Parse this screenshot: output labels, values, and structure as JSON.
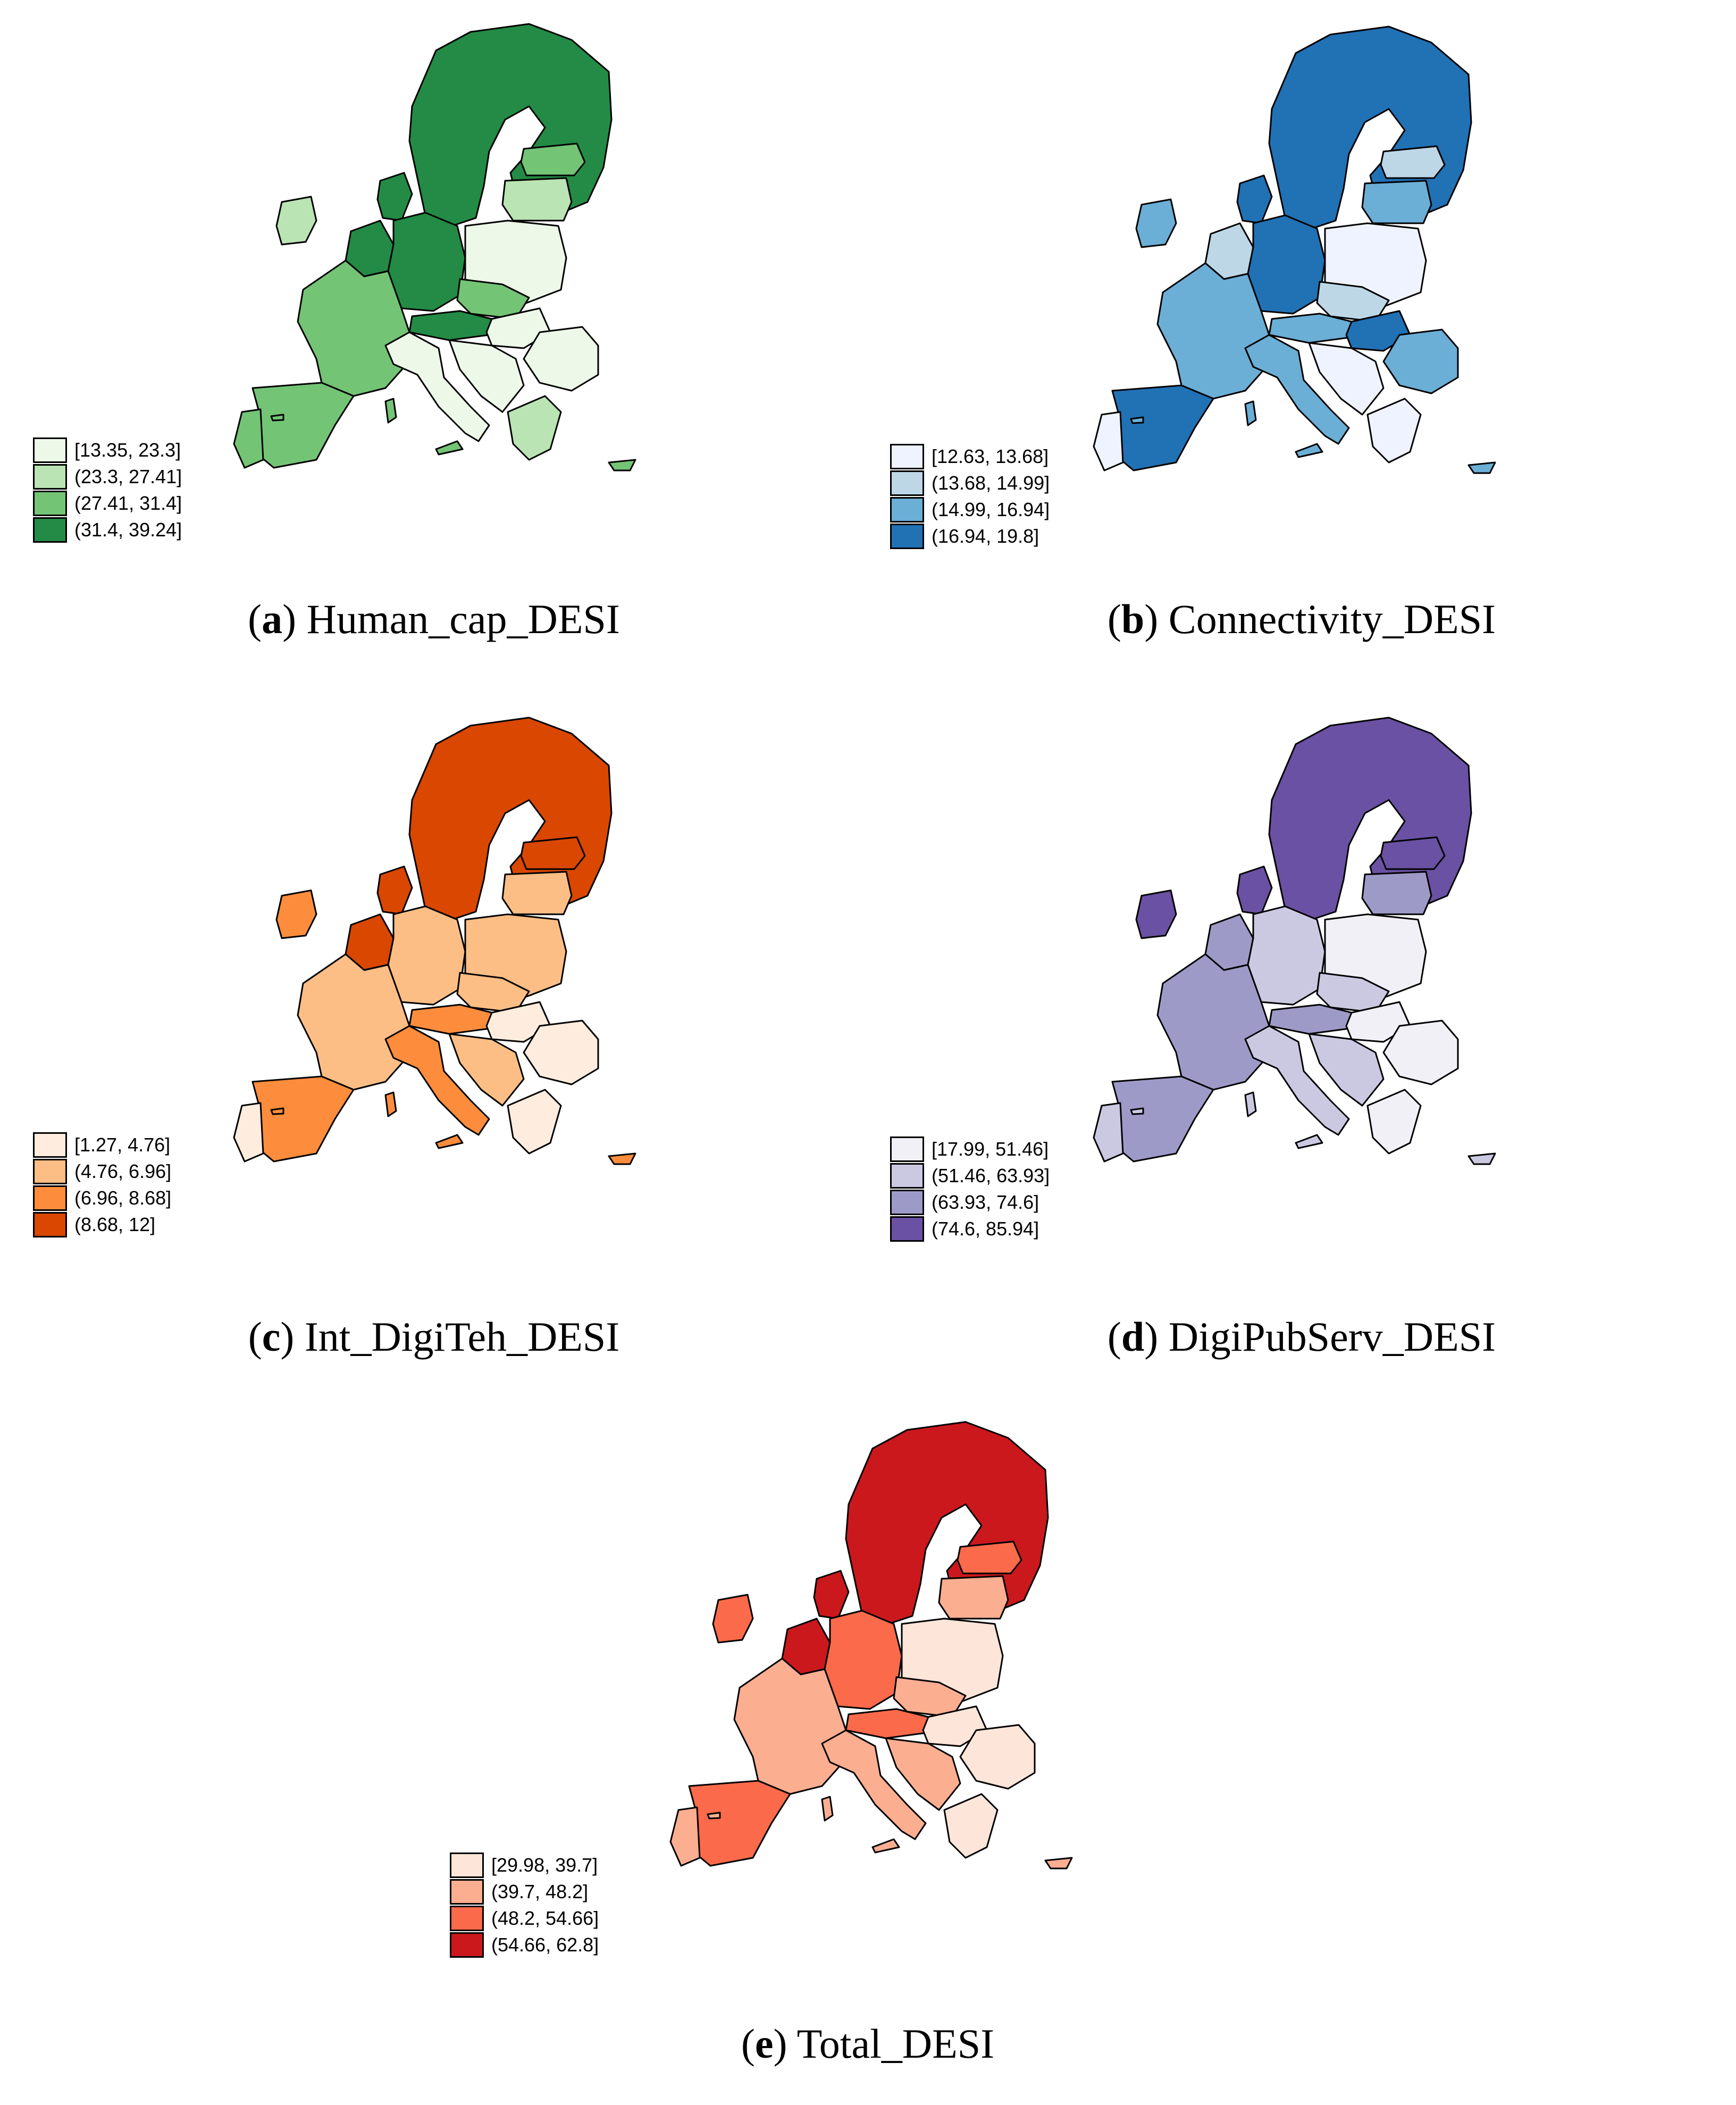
{
  "panels": [
    {
      "id": "a",
      "letter": "a",
      "title": "Human_cap_DESI",
      "colors": {
        "c1": "#edf8e9",
        "c2": "#bae4b3",
        "c3": "#74c476",
        "c4": "#238b45"
      },
      "legend": [
        "[13.35, 23.3]",
        "(23.3, 27.41]",
        "(27.41, 31.4]",
        "(31.4, 39.24]"
      ],
      "regions": {
        "nordic": 4,
        "denmark": 4,
        "ireland": 2,
        "baltic_n": 3,
        "baltic_s": 2,
        "benelux": 4,
        "germany": 4,
        "poland": 1,
        "czech": 3,
        "austria": 4,
        "hungary": 1,
        "france": 3,
        "iberia": 3,
        "portugal": 3,
        "italy": 1,
        "balkans": 1,
        "romania": 1,
        "greece": 2,
        "islands": 3
      }
    },
    {
      "id": "b",
      "letter": "b",
      "title": "Connectivity_DESI",
      "colors": {
        "c1": "#eff3ff",
        "c2": "#bdd7e7",
        "c3": "#6baed6",
        "c4": "#2171b5"
      },
      "legend": [
        "[12.63, 13.68]",
        "(13.68, 14.99]",
        "(14.99, 16.94]",
        "(16.94, 19.8]"
      ],
      "regions": {
        "nordic": 4,
        "denmark": 4,
        "ireland": 3,
        "baltic_n": 2,
        "baltic_s": 3,
        "benelux": 2,
        "germany": 4,
        "poland": 1,
        "czech": 2,
        "austria": 3,
        "hungary": 4,
        "france": 3,
        "iberia": 4,
        "portugal": 1,
        "italy": 3,
        "balkans": 1,
        "romania": 3,
        "greece": 1,
        "islands": 3
      }
    },
    {
      "id": "c",
      "letter": "c",
      "title": "Int_DigiTeh_DESI",
      "colors": {
        "c1": "#feedde",
        "c2": "#fdbe85",
        "c3": "#fd8d3c",
        "c4": "#d94701"
      },
      "legend": [
        "[1.27, 4.76]",
        "(4.76, 6.96]",
        "(6.96, 8.68]",
        "(8.68, 12]"
      ],
      "regions": {
        "nordic": 4,
        "denmark": 4,
        "ireland": 3,
        "baltic_n": 4,
        "baltic_s": 2,
        "benelux": 4,
        "germany": 2,
        "poland": 2,
        "czech": 2,
        "austria": 3,
        "hungary": 1,
        "france": 2,
        "iberia": 3,
        "portugal": 1,
        "italy": 3,
        "balkans": 2,
        "romania": 1,
        "greece": 1,
        "islands": 3
      }
    },
    {
      "id": "d",
      "letter": "d",
      "title": "DigiPubServ_DESI",
      "colors": {
        "c1": "#f2f0f7",
        "c2": "#cbc9e2",
        "c3": "#9e9ac8",
        "c4": "#6a51a3"
      },
      "legend": [
        "[17.99, 51.46]",
        "(51.46, 63.93]",
        "(63.93, 74.6]",
        "(74.6, 85.94]"
      ],
      "regions": {
        "nordic": 4,
        "denmark": 4,
        "ireland": 4,
        "baltic_n": 4,
        "baltic_s": 3,
        "benelux": 3,
        "germany": 2,
        "poland": 1,
        "czech": 2,
        "austria": 3,
        "hungary": 1,
        "france": 3,
        "iberia": 3,
        "portugal": 2,
        "italy": 2,
        "balkans": 2,
        "romania": 1,
        "greece": 1,
        "islands": 2
      }
    },
    {
      "id": "e",
      "letter": "e",
      "title": "Total_DESI",
      "colors": {
        "c1": "#fee5d9",
        "c2": "#fcae91",
        "c3": "#fb6a4a",
        "c4": "#cb181d"
      },
      "legend": [
        "[29.98, 39.7]",
        "(39.7, 48.2]",
        "(48.2, 54.66]",
        "(54.66, 62.8]"
      ],
      "regions": {
        "nordic": 4,
        "denmark": 4,
        "ireland": 3,
        "baltic_n": 3,
        "baltic_s": 2,
        "benelux": 4,
        "germany": 3,
        "poland": 1,
        "czech": 2,
        "austria": 3,
        "hungary": 1,
        "france": 2,
        "iberia": 3,
        "portugal": 2,
        "italy": 2,
        "balkans": 2,
        "romania": 1,
        "greece": 1,
        "islands": 2
      }
    }
  ]
}
